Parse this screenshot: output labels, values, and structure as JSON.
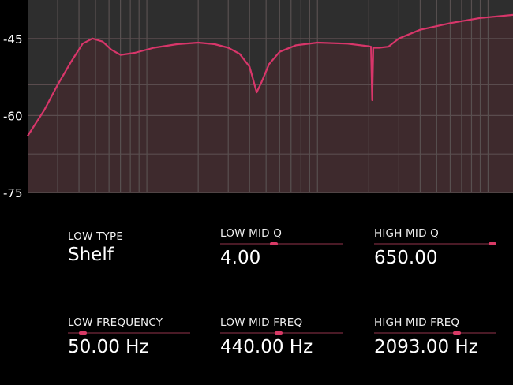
{
  "chart_data": {
    "type": "area",
    "xscale": "log",
    "xlim": [
      20,
      14000
    ],
    "ylim": [
      -75,
      -37.5
    ],
    "yticks": [
      -45,
      -60,
      -75
    ],
    "ytick_labels": [
      "-45",
      "-60",
      "-75"
    ],
    "grid": true,
    "line_color": "#d8366a",
    "fill_color": "#3e2a2d",
    "background_color": "#2e2e2e",
    "points": [
      [
        20,
        -64
      ],
      [
        25,
        -59
      ],
      [
        30,
        -54
      ],
      [
        36,
        -49.5
      ],
      [
        42,
        -46
      ],
      [
        48,
        -45
      ],
      [
        55,
        -45.6
      ],
      [
        62,
        -47.2
      ],
      [
        70,
        -48.2
      ],
      [
        85,
        -47.8
      ],
      [
        110,
        -46.8
      ],
      [
        150,
        -46.1
      ],
      [
        200,
        -45.8
      ],
      [
        250,
        -46.1
      ],
      [
        300,
        -46.8
      ],
      [
        350,
        -48
      ],
      [
        400,
        -50.5
      ],
      [
        420,
        -53
      ],
      [
        440,
        -55.5
      ],
      [
        470,
        -53.5
      ],
      [
        520,
        -50
      ],
      [
        600,
        -47.6
      ],
      [
        750,
        -46.3
      ],
      [
        1000,
        -45.8
      ],
      [
        1500,
        -46
      ],
      [
        2000,
        -46.5
      ],
      [
        2060,
        -46.6
      ],
      [
        2093,
        -57
      ],
      [
        2125,
        -46.8
      ],
      [
        2300,
        -46.8
      ],
      [
        2600,
        -46.6
      ],
      [
        3000,
        -45
      ],
      [
        4000,
        -43.3
      ],
      [
        6000,
        -42
      ],
      [
        9000,
        -41
      ],
      [
        14000,
        -40.4
      ]
    ]
  },
  "params": [
    {
      "label": "LOW TYPE",
      "value": "Shelf"
    },
    {
      "label": "LOW MID Q",
      "value": "4.00",
      "slider": 0.44
    },
    {
      "label": "HIGH MID Q",
      "value": "650.00",
      "slider": 0.97
    },
    {
      "label": "LOW FREQUENCY",
      "value": "50.00 Hz",
      "slider": 0.12
    },
    {
      "label": "LOW MID FREQ",
      "value": "440.00 Hz",
      "slider": 0.48
    },
    {
      "label": "HIGH MID FREQ",
      "value": "2093.00 Hz",
      "slider": 0.68
    }
  ],
  "colors": {
    "accent": "#d83a66",
    "track": "#4a1a26"
  }
}
